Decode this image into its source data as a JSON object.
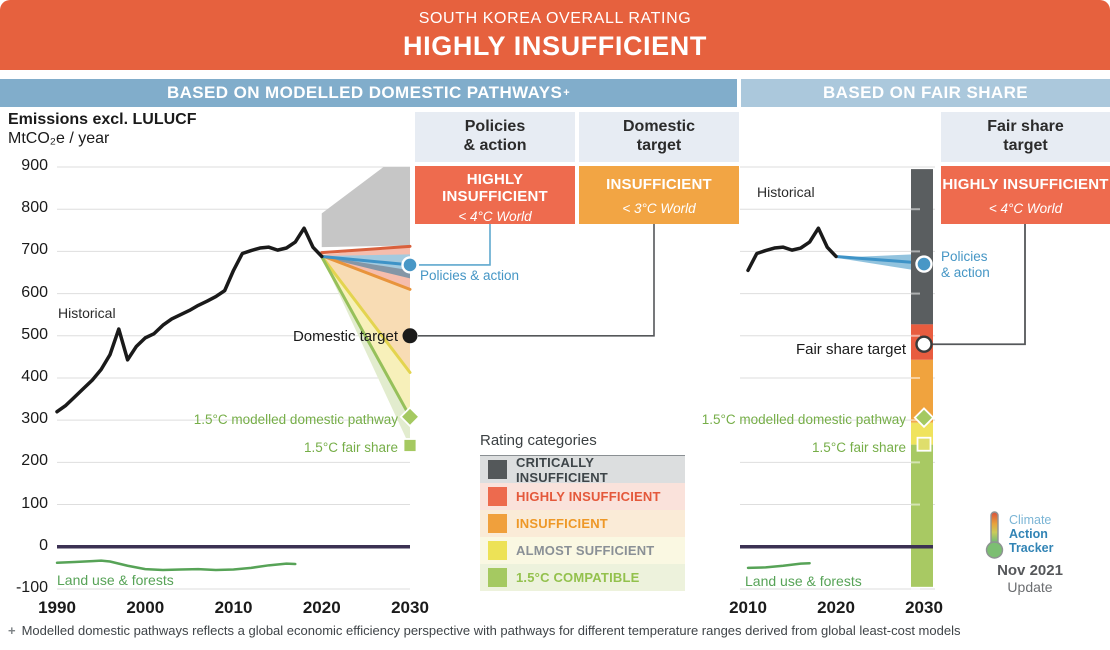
{
  "banner": {
    "subtitle": "SOUTH KOREA OVERALL RATING",
    "title": "HIGHLY INSUFFICIENT"
  },
  "sections": {
    "left": "BASED ON MODELLED DOMESTIC PATHWAYS",
    "left_sup": "+",
    "right": "BASED ON FAIR SHARE"
  },
  "colors": {
    "banner": "#E6613E",
    "section_left": "#81ADCB",
    "section_right": "#ABC8DC",
    "header_box": "#E7ECF3",
    "highly_insufficient": "#EE6B4E",
    "insufficient": "#F2A544",
    "historical": "#1A1A1A",
    "policies_blue": "#3E93C7",
    "land_use_green": "#57A357",
    "zero_line": "#3B3153"
  },
  "rating_boxes": {
    "policies_action": {
      "header_line1": "Policies",
      "header_line2": "& action",
      "rating_line1": "HIGHLY",
      "rating_line2": "INSUFFICIENT",
      "world": "< 4°C World",
      "color": "#EE6B4E"
    },
    "domestic_target": {
      "header_line1": "Domestic",
      "header_line2": "target",
      "rating_line1": "INSUFFICIENT",
      "world": "< 3°C World",
      "color": "#F2A544"
    },
    "fair_share": {
      "header_line1": "Fair share",
      "header_line2": "target",
      "rating_line1": "HIGHLY INSUFFICIENT",
      "world": "< 4°C World",
      "color": "#EE6B4E"
    }
  },
  "labels": {
    "emissions_title": "Emissions excl. LULUCF",
    "emissions_unit": "MtCO₂e / year",
    "historical": "Historical",
    "policies_action": "Policies & action",
    "policies_line1": "Policies",
    "policies_line2": "& action",
    "domestic_target": "Domestic target",
    "fair_share_target": "Fair share target",
    "pathway_15": "1.5°C modelled domestic pathway",
    "fair_share_15": "1.5°C fair share",
    "land_use": "Land use & forests"
  },
  "legend": {
    "title": "Rating categories",
    "items": [
      {
        "label": "CRITICALLY INSUFFICIENT",
        "swatch": "#54585A",
        "bg": "#DCDEDF",
        "text": "#3E4549"
      },
      {
        "label": "HIGHLY INSUFFICIENT",
        "swatch": "#ED6A4E",
        "bg": "#FAE2DB",
        "text": "#E4583B"
      },
      {
        "label": "INSUFFICIENT",
        "swatch": "#F0A03C",
        "bg": "#FAEBD7",
        "text": "#EE9827"
      },
      {
        "label": "ALMOST SUFFICIENT",
        "swatch": "#EDE256",
        "bg": "#FAF8E2",
        "text": "#8A9096"
      },
      {
        "label": "1.5°C COMPATIBLE",
        "swatch": "#A5C961",
        "bg": "#EDF2DC",
        "text": "#93C14D"
      }
    ]
  },
  "logo": {
    "line1": "Climate",
    "line2": "Action",
    "line3": "Tracker",
    "date": "Nov 2021",
    "update": "Update"
  },
  "footnote": {
    "marker": "+",
    "text": "Modelled domestic pathways reflects a global economic efficiency perspective with pathways for different temperature ranges derived from global least-cost models"
  },
  "chart_data": [
    {
      "id": "modelled-domestic-pathways",
      "type": "line",
      "title": "Emissions excl. LULUCF",
      "ylabel": "MtCO₂e / year",
      "x_range": [
        1990,
        2030
      ],
      "ylim": [
        -100,
        900
      ],
      "grid_step": 100,
      "x_ticks": [
        1990,
        2000,
        2010,
        2020,
        2030
      ],
      "y_ticks": [
        900,
        800,
        700,
        600,
        500,
        400,
        300,
        200,
        100,
        0,
        -100
      ],
      "historical": {
        "years": [
          1990,
          1991,
          1992,
          1993,
          1994,
          1995,
          1996,
          1997,
          1998,
          1999,
          2000,
          2001,
          2002,
          2003,
          2004,
          2005,
          2006,
          2007,
          2008,
          2009,
          2010,
          2011,
          2012,
          2013,
          2014,
          2015,
          2016,
          2017,
          2018,
          2019,
          2020
        ],
        "values": [
          320,
          335,
          355,
          375,
          395,
          420,
          455,
          516,
          443,
          475,
          495,
          505,
          525,
          540,
          550,
          560,
          572,
          582,
          593,
          607,
          655,
          695,
          702,
          708,
          710,
          703,
          708,
          722,
          755,
          710,
          688
        ]
      },
      "land_use": {
        "years": [
          1990,
          1992,
          1994,
          1995,
          1996,
          1998,
          2000,
          2002,
          2004,
          2006,
          2008,
          2010,
          2012,
          2014,
          2015,
          2016,
          2017
        ],
        "values": [
          -38,
          -36,
          -34,
          -33,
          -35,
          -45,
          -53,
          -55,
          -54,
          -53,
          -55,
          -54,
          -50,
          -44,
          -42,
          -40,
          -41
        ]
      },
      "projection_bands": [
        {
          "name": "critically-insufficient-range",
          "color": "#C6C6C6",
          "points": [
            [
              2020,
              710
            ],
            [
              2020,
              790
            ],
            [
              2027,
              900
            ],
            [
              2030,
              900
            ],
            [
              2030,
              714
            ]
          ]
        },
        {
          "name": "policies-action-range",
          "color": "#F5BDAD",
          "points": [
            [
              2020,
              692
            ],
            [
              2030,
              712
            ],
            [
              2030,
              601
            ]
          ]
        },
        {
          "name": "insufficient-range",
          "color": "#F8DCB4",
          "points": [
            [
              2020,
              689
            ],
            [
              2030,
              610
            ],
            [
              2030,
              413
            ]
          ]
        },
        {
          "name": "almost-sufficient-range",
          "color": "#F7F0BA",
          "points": [
            [
              2020,
              688
            ],
            [
              2030,
              413
            ],
            [
              2030,
              244
            ]
          ]
        },
        {
          "name": "15c-compatible-range",
          "color": "#E2ECCE",
          "points": [
            [
              2020,
              687
            ],
            [
              2030,
              308
            ],
            [
              2030,
              237
            ]
          ]
        },
        {
          "name": "pna-dark-band",
          "color": "#8496A6",
          "points": [
            [
              2020,
              687
            ],
            [
              2030,
              679
            ],
            [
              2030,
              636
            ]
          ]
        },
        {
          "name": "pna-light-band",
          "color": "#A3CADF",
          "points": [
            [
              2020,
              689
            ],
            [
              2030,
              693
            ],
            [
              2030,
              655
            ]
          ]
        }
      ],
      "projection_lines": [
        {
          "name": "highly-insufficient-line",
          "color": "#D9603C",
          "from": [
            2020,
            697
          ],
          "to": [
            2030,
            712
          ]
        },
        {
          "name": "insufficient-line",
          "color": "#E8943C",
          "from": [
            2020,
            690
          ],
          "to": [
            2030,
            610
          ]
        },
        {
          "name": "almost-sufficient-line",
          "color": "#E3D44F",
          "from": [
            2020,
            688
          ],
          "to": [
            2030,
            413
          ]
        },
        {
          "name": "15c-pathway-line",
          "color": "#96C05A",
          "from": [
            2020,
            687
          ],
          "to": [
            2030,
            308
          ]
        },
        {
          "name": "policies-action-line",
          "color": "#3E93C7",
          "from": [
            2020,
            688
          ],
          "to": [
            2030,
            668
          ]
        }
      ],
      "markers": [
        {
          "name": "policies-action-marker",
          "shape": "circle",
          "year": 2030,
          "value": 668,
          "fill": "#4897C6",
          "stroke": "#FFFFFF"
        },
        {
          "name": "domestic-target-marker",
          "shape": "circle",
          "year": 2030,
          "value": 500,
          "fill": "#1A1A1A",
          "stroke": "none"
        },
        {
          "name": "15c-pathway-marker",
          "shape": "diamond",
          "year": 2030,
          "value": 308,
          "fill": "#A5C961",
          "stroke": "#FFFFFF"
        },
        {
          "name": "15c-fair-share-marker",
          "shape": "square",
          "year": 2030,
          "value": 240,
          "fill": "#A5C961",
          "stroke": "#FFFFFF"
        }
      ]
    },
    {
      "id": "fair-share",
      "type": "line",
      "x_range": [
        2010,
        2030
      ],
      "ylim": [
        -100,
        900
      ],
      "x_ticks": [
        2010,
        2020,
        2030
      ],
      "historical": {
        "years": [
          2010,
          2011,
          2012,
          2013,
          2014,
          2015,
          2016,
          2017,
          2018,
          2019,
          2020
        ],
        "values": [
          655,
          695,
          702,
          708,
          710,
          703,
          708,
          722,
          755,
          710,
          688
        ]
      },
      "land_use": {
        "years": [
          2010,
          2012,
          2014,
          2016,
          2017
        ],
        "values": [
          -50,
          -49,
          -45,
          -40,
          -39
        ]
      },
      "projection_bands": [
        {
          "name": "pna-band",
          "color": "#7FB8D8",
          "points": [
            [
              2020,
              685
            ],
            [
              2030,
              694
            ],
            [
              2030,
              652
            ]
          ]
        }
      ],
      "projection_lines": [
        {
          "name": "policies-action-line",
          "color": "#3E93C7",
          "from": [
            2020,
            688
          ],
          "to": [
            2030,
            672
          ]
        }
      ],
      "rating_bar": {
        "segments": [
          {
            "name": "critically-insufficient",
            "color": "#5A5E60",
            "from": 895,
            "to": 527
          },
          {
            "name": "highly-insufficient",
            "color": "#E85C3F",
            "from": 527,
            "to": 443
          },
          {
            "name": "insufficient",
            "color": "#F0A33E",
            "from": 443,
            "to": 294
          },
          {
            "name": "almost-sufficient",
            "color": "#F0E35D",
            "from": 294,
            "to": 242
          },
          {
            "name": "15c-compatible",
            "color": "#A8C963",
            "from": 242,
            "to": -95
          }
        ]
      },
      "markers": [
        {
          "name": "policies-action-marker",
          "shape": "circle",
          "year": 2030,
          "value": 670,
          "fill": "#4897C6",
          "stroke": "#FFFFFF"
        },
        {
          "name": "fair-share-target-marker",
          "shape": "circle",
          "year": 2030,
          "value": 480,
          "fill": "#FFFFFF",
          "stroke": "#3A3A3A"
        },
        {
          "name": "15c-pathway-marker",
          "shape": "diamond",
          "year": 2030,
          "value": 306,
          "fill": "#A5C961",
          "stroke": "#FFFFFF"
        },
        {
          "name": "15c-fair-share-marker",
          "shape": "square",
          "year": 2030,
          "value": 243,
          "fill": "#DFDE6C",
          "stroke": "#FFFFFF"
        }
      ]
    }
  ]
}
